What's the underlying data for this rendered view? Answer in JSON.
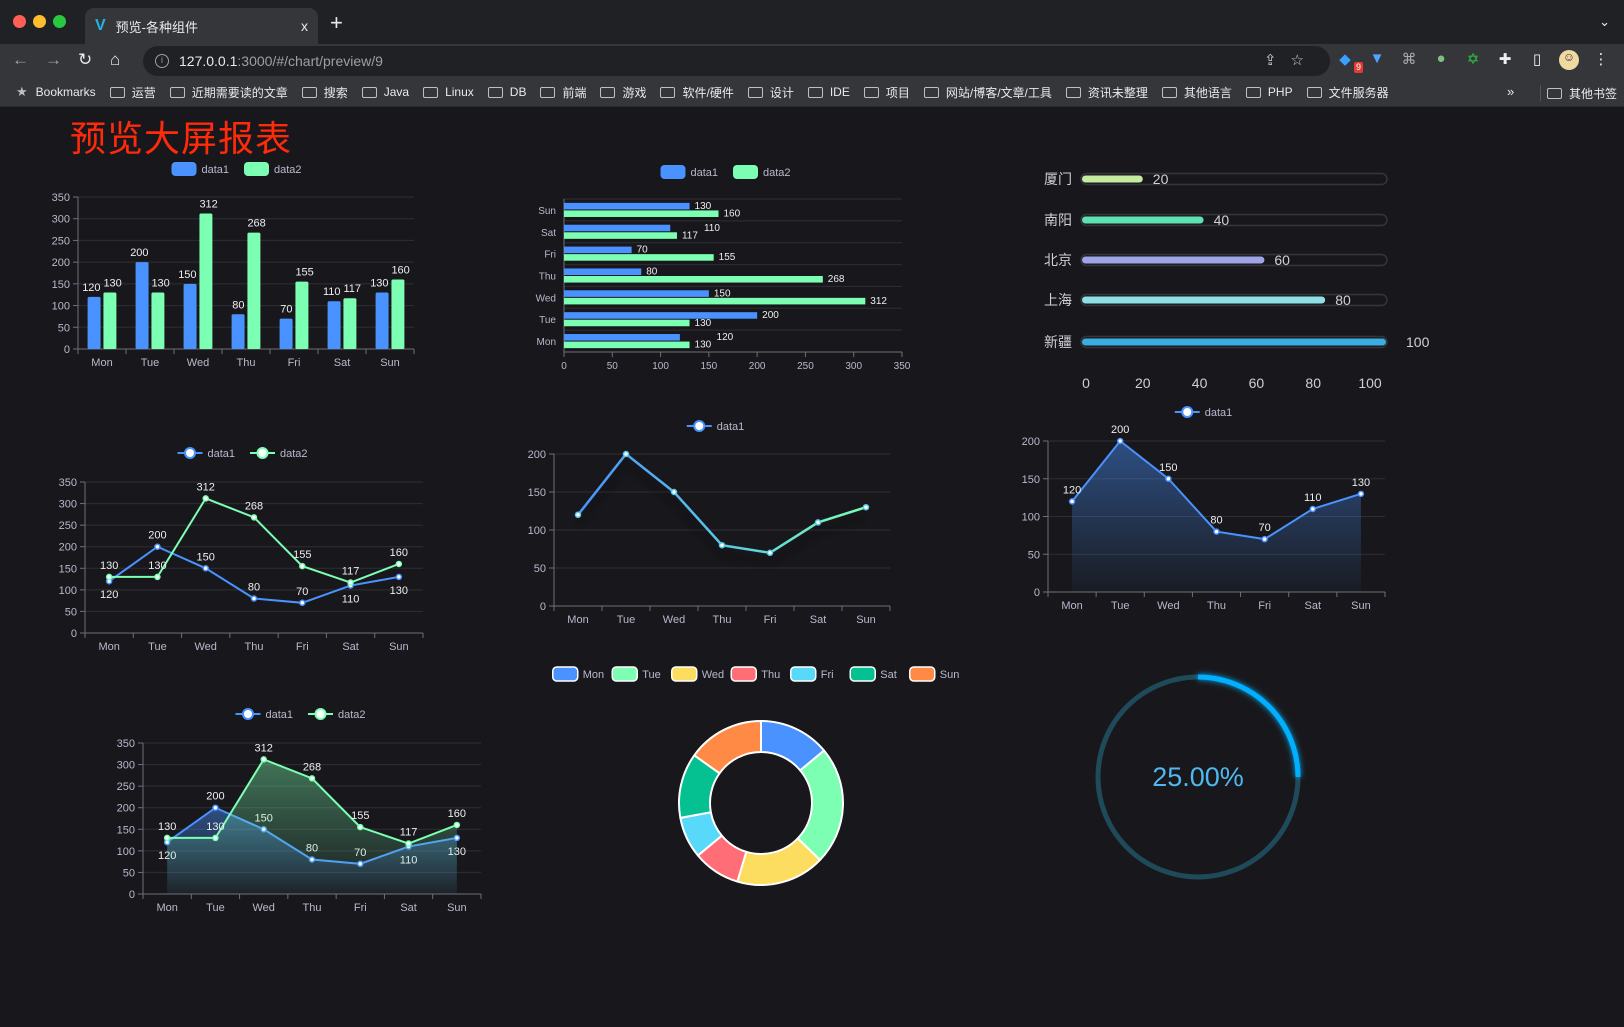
{
  "browser": {
    "tab_title": "预览-各种组件",
    "tab_close": "x",
    "new_tab": "+",
    "tab_menu": "⌄",
    "url_host": "127.0.0.1",
    "url_rest": ":3000/#/chart/preview/9",
    "extension_badge": "9",
    "bookmarks_label": "Bookmarks",
    "bookmarks": [
      "运营",
      "近期需要读的文章",
      "搜索",
      "Java",
      "Linux",
      "DB",
      "前端",
      "游戏",
      "软件/硬件",
      "设计",
      "IDE",
      "项目",
      "网站/博客/文章/工具",
      "资讯未整理",
      "其他语言",
      "PHP",
      "文件服务器"
    ],
    "bookmarks_more": "»",
    "other_bookmarks": "其他书签"
  },
  "page": {
    "title": "预览大屏报表",
    "title_color": "#ff2a0a"
  },
  "colors": {
    "data1": "#4992ff",
    "data2": "#7cffb2",
    "background": "#18181c"
  },
  "chart_data": [
    {
      "type": "bar",
      "categories": [
        "Mon",
        "Tue",
        "Wed",
        "Thu",
        "Fri",
        "Sat",
        "Sun"
      ],
      "series": [
        {
          "name": "data1",
          "values": [
            120,
            200,
            150,
            80,
            70,
            110,
            130
          ]
        },
        {
          "name": "data2",
          "values": [
            130,
            130,
            312,
            268,
            155,
            117,
            160
          ]
        }
      ],
      "ylim": [
        0,
        350
      ],
      "ytick_step": 50,
      "data_labels": true,
      "legend": "top"
    },
    {
      "type": "bar",
      "orientation": "horizontal",
      "categories": [
        "Mon",
        "Tue",
        "Wed",
        "Thu",
        "Fri",
        "Sat",
        "Sun"
      ],
      "series": [
        {
          "name": "data1",
          "values": [
            120,
            200,
            150,
            80,
            70,
            110,
            130
          ]
        },
        {
          "name": "data2",
          "values": [
            130,
            130,
            312,
            268,
            155,
            117,
            160
          ]
        }
      ],
      "xlim": [
        0,
        350
      ],
      "xtick_step": 50,
      "data_labels": true,
      "legend": "top"
    },
    {
      "type": "bar",
      "orientation": "horizontal",
      "style": "progress",
      "categories": [
        "厦门",
        "南阳",
        "北京",
        "上海",
        "新疆"
      ],
      "values": [
        20,
        40,
        60,
        80,
        100
      ],
      "xlim": [
        0,
        100
      ],
      "xtick_step": 20,
      "bar_colors": [
        "#c5eba0",
        "#5fe0b0",
        "#9fa4e6",
        "#8fe0e6",
        "#3aaee0"
      ]
    },
    {
      "type": "line",
      "categories": [
        "Mon",
        "Tue",
        "Wed",
        "Thu",
        "Fri",
        "Sat",
        "Sun"
      ],
      "series": [
        {
          "name": "data1",
          "values": [
            120,
            200,
            150,
            80,
            70,
            110,
            130
          ]
        },
        {
          "name": "data2",
          "values": [
            130,
            130,
            312,
            268,
            155,
            117,
            160
          ]
        }
      ],
      "ylim": [
        0,
        350
      ],
      "ytick_step": 50,
      "data_labels": true,
      "legend": "top"
    },
    {
      "type": "line",
      "categories": [
        "Mon",
        "Tue",
        "Wed",
        "Thu",
        "Fri",
        "Sat",
        "Sun"
      ],
      "series": [
        {
          "name": "data1",
          "values": [
            120,
            200,
            150,
            80,
            70,
            110,
            130
          ]
        }
      ],
      "ylim": [
        0,
        200
      ],
      "ytick_step": 50,
      "data_labels": false,
      "gradient_line": true,
      "legend": "top"
    },
    {
      "type": "area",
      "categories": [
        "Mon",
        "Tue",
        "Wed",
        "Thu",
        "Fri",
        "Sat",
        "Sun"
      ],
      "series": [
        {
          "name": "data1",
          "values": [
            120,
            200,
            150,
            80,
            70,
            110,
            130
          ]
        }
      ],
      "ylim": [
        0,
        200
      ],
      "ytick_step": 50,
      "data_labels": true,
      "legend": "top"
    },
    {
      "type": "area",
      "categories": [
        "Mon",
        "Tue",
        "Wed",
        "Thu",
        "Fri",
        "Sat",
        "Sun"
      ],
      "series": [
        {
          "name": "data1",
          "values": [
            120,
            200,
            150,
            80,
            70,
            110,
            130
          ]
        },
        {
          "name": "data2",
          "values": [
            130,
            130,
            312,
            268,
            155,
            117,
            160
          ]
        }
      ],
      "ylim": [
        0,
        350
      ],
      "ytick_step": 50,
      "data_labels": true,
      "legend": "top"
    },
    {
      "type": "pie",
      "style": "donut",
      "categories": [
        "Mon",
        "Tue",
        "Wed",
        "Thu",
        "Fri",
        "Sat",
        "Sun"
      ],
      "values": [
        120,
        200,
        150,
        80,
        70,
        110,
        130
      ],
      "colors": [
        "#4992ff",
        "#7cffb2",
        "#fddd60",
        "#ff6e76",
        "#58d9f9",
        "#05c091",
        "#ff8a45"
      ],
      "legend": "top"
    },
    {
      "type": "gauge",
      "value": 25,
      "label": "25.00%",
      "color": "#00b0ff",
      "track_color": "#1f4a5a",
      "text_color": "#4fb8f0"
    }
  ]
}
